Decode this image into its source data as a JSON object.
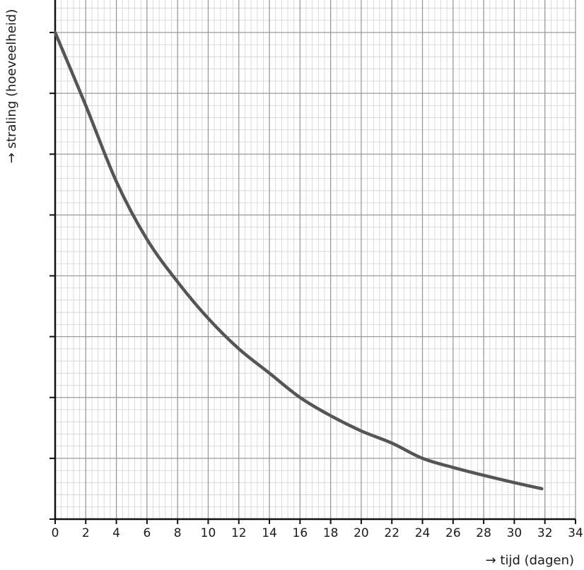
{
  "chart_data": {
    "type": "line",
    "title": "",
    "xlabel": "→ tijd (dagen)",
    "ylabel": "→ straling (hoeveelheid)",
    "xlim": [
      0,
      34
    ],
    "ylim": [
      0,
      8
    ],
    "x_ticks": [
      "0",
      "2",
      "4",
      "6",
      "8",
      "10",
      "12",
      "14",
      "16",
      "18",
      "20",
      "22",
      "24",
      "26",
      "28",
      "30",
      "32",
      "34"
    ],
    "y_ticks_labeled": false,
    "grid": true,
    "series": [
      {
        "color": "#555555",
        "x": [
          0,
          2,
          4,
          6,
          8,
          10,
          12,
          14,
          16,
          18,
          20,
          22,
          24,
          26,
          28,
          30,
          31.8
        ],
        "y": [
          8.0,
          6.8,
          5.55,
          4.6,
          3.9,
          3.3,
          2.8,
          2.4,
          2.0,
          1.7,
          1.45,
          1.25,
          1.0,
          0.85,
          0.72,
          0.6,
          0.5
        ]
      }
    ]
  }
}
